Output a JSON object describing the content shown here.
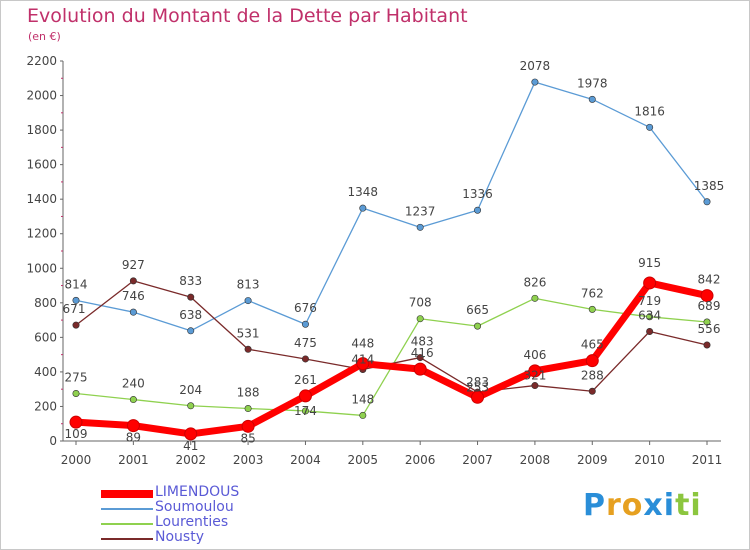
{
  "chart_data": {
    "type": "line",
    "title": "Evolution du Montant de la Dette par Habitant",
    "subtitle": "(en €)",
    "x": [
      "2000",
      "2001",
      "2002",
      "2003",
      "2004",
      "2005",
      "2006",
      "2007",
      "2008",
      "2009",
      "2010",
      "2011"
    ],
    "ylim": [
      0,
      2200
    ],
    "yticks": [
      0,
      200,
      400,
      600,
      800,
      1000,
      1200,
      1400,
      1600,
      1800,
      2000,
      2200
    ],
    "grid": false,
    "legend": "bottom-left",
    "series": [
      {
        "name": "Soumoulou",
        "color": "#5b9bd5",
        "values": [
          814,
          746,
          638,
          813,
          676,
          1348,
          1237,
          1336,
          2078,
          1978,
          1816,
          1385
        ]
      },
      {
        "name": "Lourenties",
        "color": "#8fd14f",
        "values": [
          275,
          240,
          204,
          188,
          174,
          148,
          708,
          665,
          826,
          762,
          719,
          689
        ]
      },
      {
        "name": "Nousty",
        "color": "#7a2a2a",
        "values": [
          671,
          927,
          833,
          531,
          475,
          414,
          483,
          283,
          321,
          288,
          634,
          556
        ]
      },
      {
        "name": "LIMENDOUS",
        "color": "#ff0000",
        "values": [
          109,
          89,
          41,
          85,
          261,
          448,
          416,
          253,
          406,
          465,
          915,
          842
        ]
      }
    ],
    "legend_order": [
      "LIMENDOUS",
      "Soumoulou",
      "Lourenties",
      "Nousty"
    ]
  },
  "logo": {
    "letters": [
      "P",
      "r",
      "o",
      "x",
      "i",
      "t",
      "i"
    ],
    "colors": [
      "#2a8ed8",
      "#e6a020",
      "#e6a020",
      "#2a8ed8",
      "#2a8ed8",
      "#8cc63f",
      "#8cc63f"
    ]
  }
}
